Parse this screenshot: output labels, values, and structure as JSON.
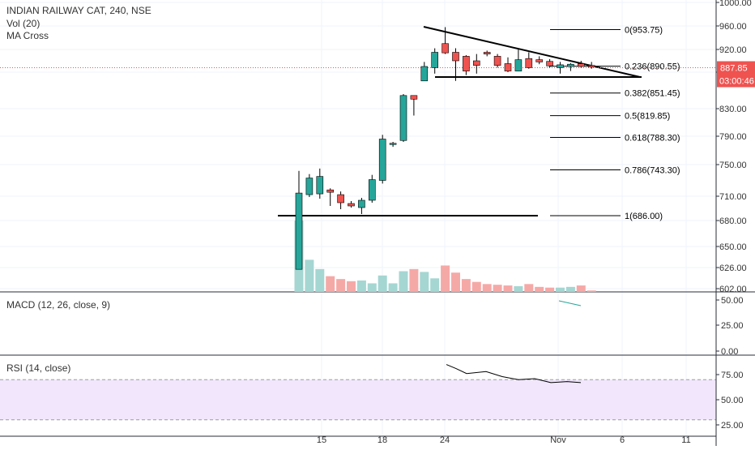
{
  "header": {
    "symbol_line": "INDIAN RAILWAY CAT, 240, NSE",
    "volume_label": "Vol (20)",
    "ma_label": "MA Cross"
  },
  "macd_label": "MACD (12, 26, close, 9)",
  "rsi_label": "RSI (14, close)",
  "price_tag": "887.85",
  "countdown_tag": "03:00:46",
  "colors": {
    "up": "#26a69a",
    "down": "#ef5350",
    "up_vol": "#a5d6d2",
    "down_vol": "#f5a9a7",
    "rsi_band": "#f1e6fc",
    "price_line": "#ef5350",
    "countdown_bg": "#ef5350"
  },
  "chart_data": {
    "type": "candlestick",
    "price_ticks": [
      "1000.00",
      "960.00",
      "920.00",
      "880.00",
      "830.00",
      "790.00",
      "750.00",
      "710.00",
      "680.00",
      "650.00",
      "626.00",
      "602.00"
    ],
    "x_ticks": [
      "15",
      "18",
      "24",
      "Nov",
      "6",
      "11"
    ],
    "macd_ticks": [
      "50.00",
      "25.00",
      "0.00"
    ],
    "rsi_ticks": [
      "75.00",
      "50.00",
      "25.00"
    ],
    "candles": [
      {
        "o": 624,
        "h": 742,
        "l": 624,
        "c": 714
      },
      {
        "o": 712,
        "h": 738,
        "l": 709,
        "c": 733
      },
      {
        "o": 713,
        "h": 745,
        "l": 707,
        "c": 735
      },
      {
        "o": 718,
        "h": 720,
        "l": 698,
        "c": 715
      },
      {
        "o": 712,
        "h": 716,
        "l": 694,
        "c": 702
      },
      {
        "o": 701,
        "h": 704,
        "l": 696,
        "c": 698
      },
      {
        "o": 696,
        "h": 708,
        "l": 688,
        "c": 705
      },
      {
        "o": 705,
        "h": 737,
        "l": 702,
        "c": 731
      },
      {
        "o": 730,
        "h": 792,
        "l": 726,
        "c": 786
      },
      {
        "o": 780,
        "h": 782,
        "l": 775,
        "c": 780
      },
      {
        "o": 784,
        "h": 850,
        "l": 782,
        "c": 848
      },
      {
        "o": 848,
        "h": 848,
        "l": 820,
        "c": 843
      },
      {
        "o": 868,
        "h": 898,
        "l": 868,
        "c": 890
      },
      {
        "o": 888,
        "h": 922,
        "l": 878,
        "c": 915
      },
      {
        "o": 930,
        "h": 958,
        "l": 912,
        "c": 914
      },
      {
        "o": 915,
        "h": 922,
        "l": 868,
        "c": 900
      },
      {
        "o": 908,
        "h": 910,
        "l": 876,
        "c": 882
      },
      {
        "o": 900,
        "h": 912,
        "l": 878,
        "c": 892
      },
      {
        "o": 915,
        "h": 918,
        "l": 908,
        "c": 912
      },
      {
        "o": 908,
        "h": 912,
        "l": 888,
        "c": 892
      },
      {
        "o": 895,
        "h": 906,
        "l": 880,
        "c": 882
      },
      {
        "o": 882,
        "h": 922,
        "l": 882,
        "c": 902
      },
      {
        "o": 904,
        "h": 915,
        "l": 886,
        "c": 888
      },
      {
        "o": 902,
        "h": 908,
        "l": 894,
        "c": 898
      },
      {
        "o": 899,
        "h": 903,
        "l": 888,
        "c": 891
      },
      {
        "o": 888,
        "h": 898,
        "l": 878,
        "c": 893
      },
      {
        "o": 890,
        "h": 896,
        "l": 882,
        "c": 894
      },
      {
        "o": 895,
        "h": 900,
        "l": 888,
        "c": 890
      },
      {
        "o": 892,
        "h": 898,
        "l": 886,
        "c": 889
      }
    ],
    "volumes": [
      1.0,
      0.45,
      0.32,
      0.22,
      0.18,
      0.15,
      0.16,
      0.12,
      0.23,
      0.12,
      0.29,
      0.32,
      0.28,
      0.19,
      0.37,
      0.27,
      0.18,
      0.14,
      0.11,
      0.1,
      0.09,
      0.08,
      0.11,
      0.07,
      0.06,
      0.06,
      0.07,
      0.09,
      0.02
    ],
    "fib_levels": [
      {
        "label": "0(953.75)",
        "value": 953.75
      },
      {
        "label": "0.236(890.55)",
        "value": 890.55
      },
      {
        "label": "0.382(851.45)",
        "value": 851.45
      },
      {
        "label": "0.5(819.85)",
        "value": 819.85
      },
      {
        "label": "0.618(788.30)",
        "value": 788.3
      },
      {
        "label": "0.786(743.30)",
        "value": 743.3
      },
      {
        "label": "1(686.00)",
        "value": 686.0
      }
    ],
    "current_price": 887.85,
    "macd_signal": [
      47,
      42
    ],
    "rsi_values": [
      85,
      76,
      78,
      70,
      68,
      66,
      67,
      66
    ]
  }
}
